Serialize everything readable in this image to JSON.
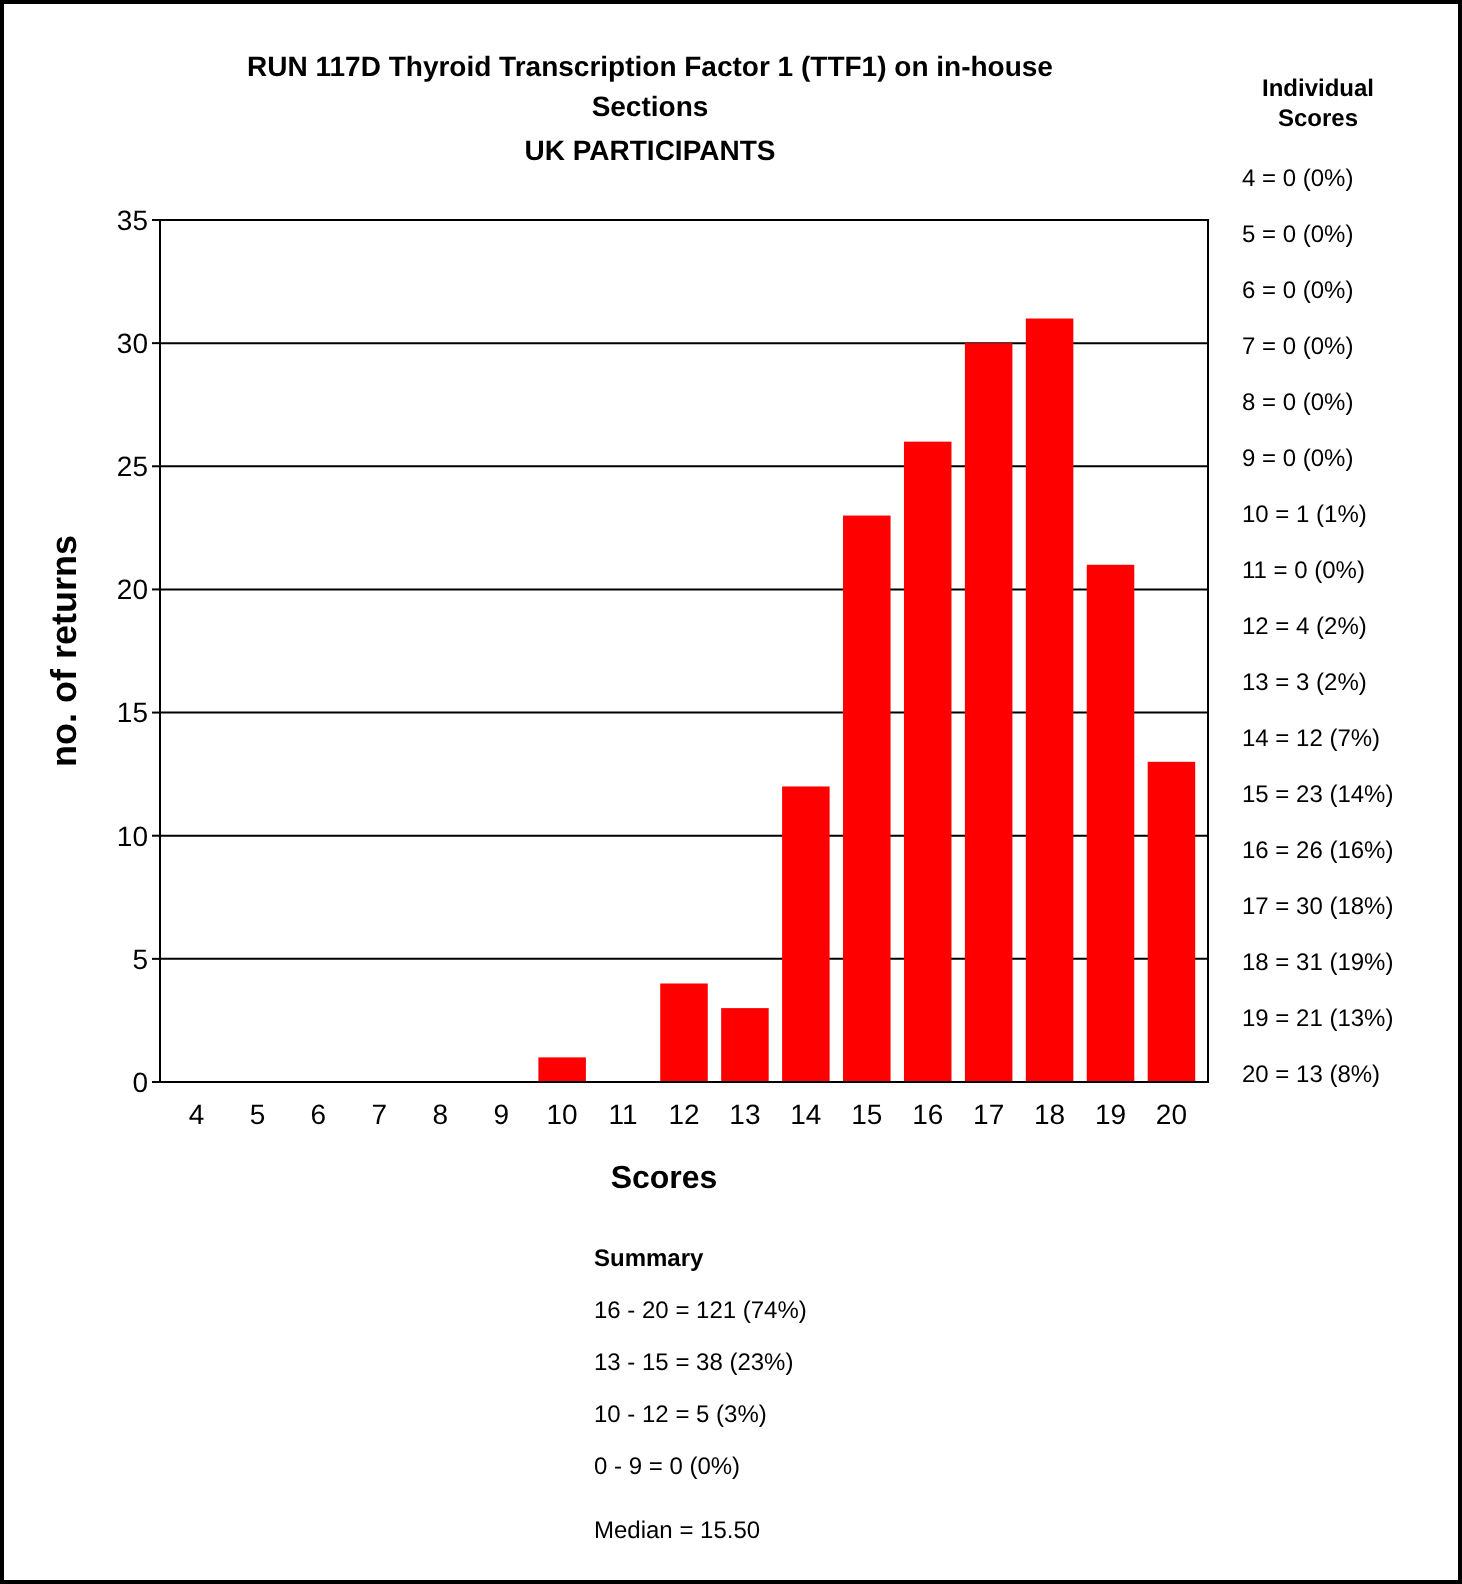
{
  "chart_data": {
    "type": "bar",
    "title": "RUN 117D Thyroid Transcription Factor 1 (TTF1) on in-house Sections",
    "subtitle": "UK PARTICIPANTS",
    "xlabel": "Scores",
    "ylabel": "no. of returns",
    "categories": [
      "4",
      "5",
      "6",
      "7",
      "8",
      "9",
      "10",
      "11",
      "12",
      "13",
      "14",
      "15",
      "16",
      "17",
      "18",
      "19",
      "20"
    ],
    "values": [
      0,
      0,
      0,
      0,
      0,
      0,
      1,
      0,
      4,
      3,
      12,
      23,
      26,
      30,
      31,
      21,
      13
    ],
    "color": "#ff0000",
    "ylim": [
      0,
      35
    ],
    "yticks": [
      0,
      5,
      10,
      15,
      20,
      25,
      30,
      35
    ],
    "grid": "y",
    "annotations": [
      "Individual Scores",
      "4 = 0 (0%)",
      "5 = 0 (0%)",
      "6 = 0 (0%)",
      "7 = 0 (0%)",
      "8 = 0 (0%)",
      "9 = 0 (0%)",
      "10 = 1 (1%)",
      "11 = 0 (0%)",
      "12 = 4 (2%)",
      "13 = 3 (2%)",
      "14 = 12 (7%)",
      "15 = 23 (14%)",
      "16 = 26 (16%)",
      "17 = 30 (18%)",
      "18 = 31 (19%)",
      "19 = 21 (13%)",
      "20 = 13 (8%)",
      "Summary",
      "16 - 20 = 121 (74%)",
      "13 - 15 = 38 (23%)",
      "10 - 12 = 5 (3%)",
      "0 - 9 = 0 (0%)",
      "Median = 15.50"
    ]
  }
}
